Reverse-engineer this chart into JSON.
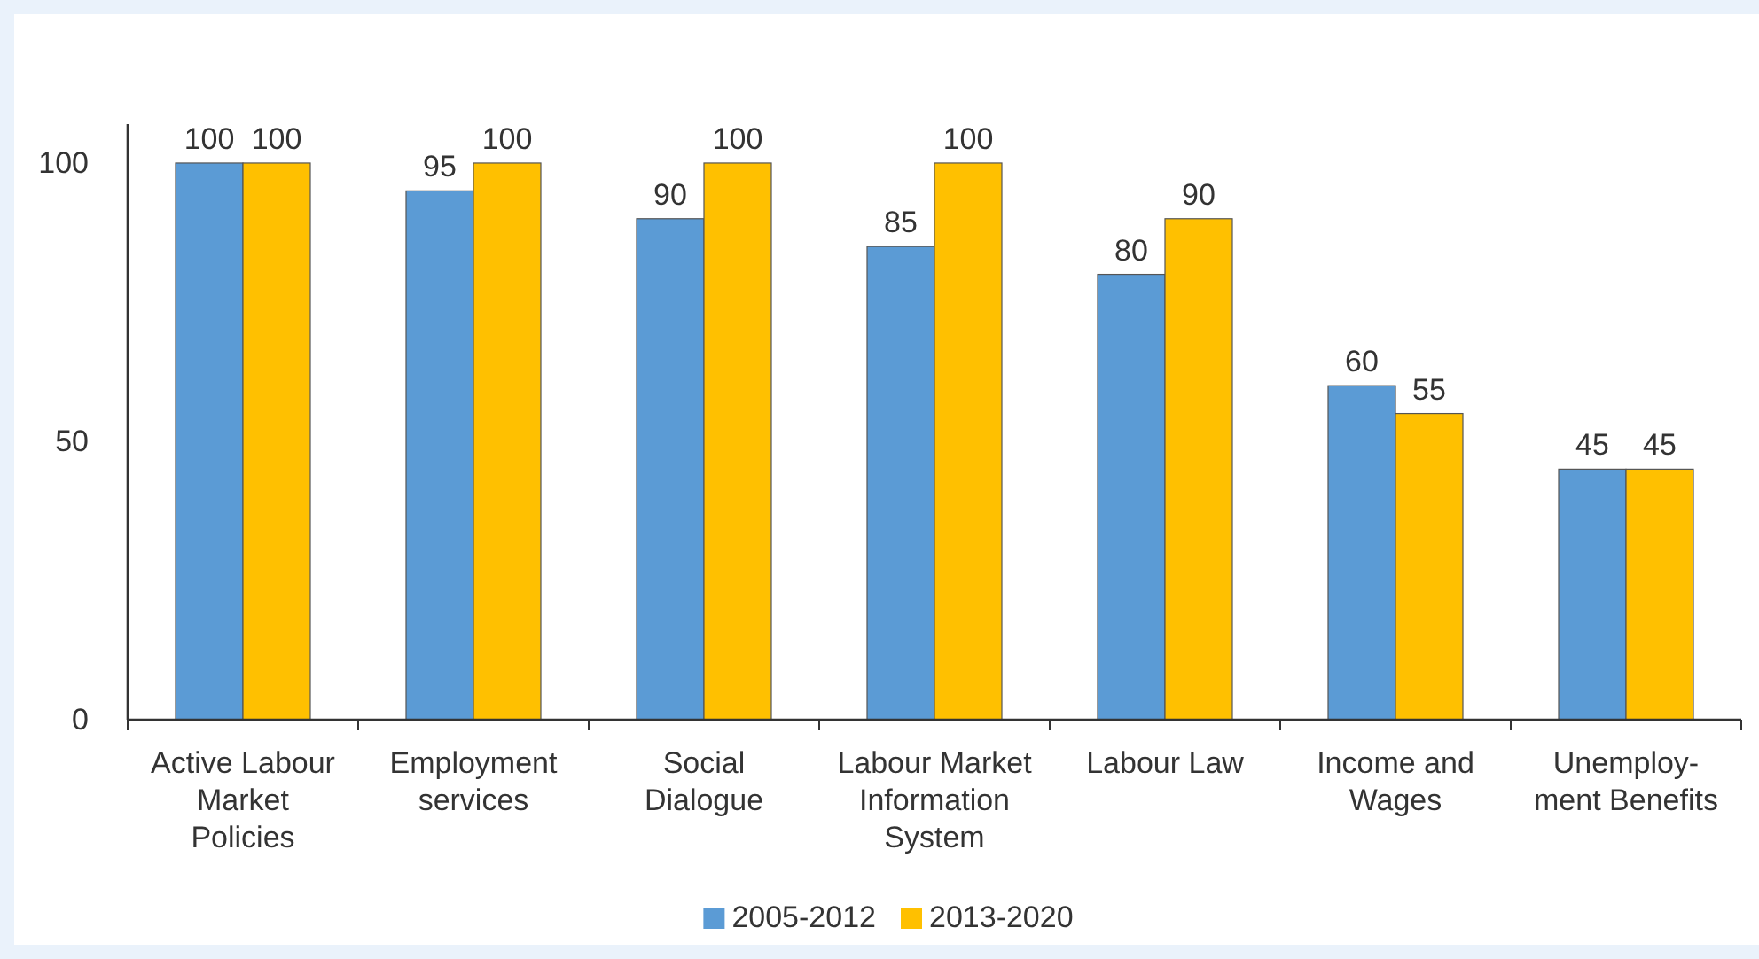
{
  "chart_data": {
    "type": "bar",
    "categories": [
      "Active Labour\nMarket\nPolicies",
      "Employment\nservices",
      "Social\nDialogue",
      "Labour Market\nInformation\nSystem",
      "Labour Law",
      "Income and\nWages",
      "Unemploy-\nment Benefits"
    ],
    "series": [
      {
        "name": "2005-2012",
        "color": "#5b9bd5",
        "values": [
          100,
          95,
          90,
          85,
          80,
          60,
          45
        ]
      },
      {
        "name": "2013-2020",
        "color": "#ffc000",
        "values": [
          100,
          100,
          100,
          100,
          90,
          55,
          45
        ]
      }
    ],
    "ylim": [
      0,
      107
    ],
    "yticks": [
      0,
      50,
      100
    ],
    "grid": false,
    "data_labels": true,
    "legend": "bottom"
  }
}
